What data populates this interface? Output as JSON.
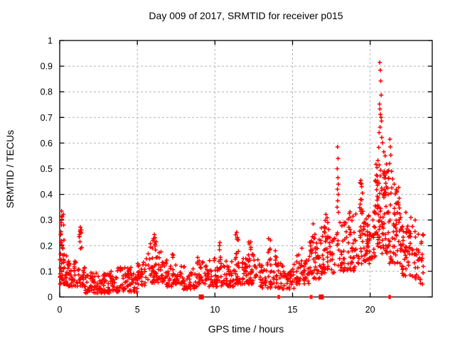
{
  "figure": {
    "title": "Day 009 of 2017, SRMTID for receiver p015"
  },
  "chart_data": {
    "type": "scatter",
    "title": "Day 009 of 2017, SRMTID for receiver p015",
    "xlabel": "GPS time / hours",
    "ylabel": "SRMTID / TECUs",
    "xlim": [
      0,
      24
    ],
    "ylim": [
      0,
      1
    ],
    "xticks": [
      {
        "v": 0,
        "label": "0"
      },
      {
        "v": 5,
        "label": "5"
      },
      {
        "v": 10,
        "label": "10"
      },
      {
        "v": 15,
        "label": "15"
      },
      {
        "v": 20,
        "label": "20"
      }
    ],
    "yticks": [
      {
        "v": 0.0,
        "label": "0"
      },
      {
        "v": 0.1,
        "label": "0.1"
      },
      {
        "v": 0.2,
        "label": "0.2"
      },
      {
        "v": 0.3,
        "label": "0.3"
      },
      {
        "v": 0.4,
        "label": "0.4"
      },
      {
        "v": 0.5,
        "label": "0.5"
      },
      {
        "v": 0.6,
        "label": "0.6"
      },
      {
        "v": 0.7,
        "label": "0.7"
      },
      {
        "v": 0.8,
        "label": "0.8"
      },
      {
        "v": 0.9,
        "label": "0.9"
      },
      {
        "v": 1.0,
        "label": "1"
      }
    ],
    "grid": true,
    "legend": false,
    "marker": "plus",
    "marker_color": "#ff0000",
    "grid_color": "#b4b4b4",
    "frame_color": "#000000",
    "background": "#ffffff",
    "summary": "24 h of 30 s SRMTID values: noisy baseline 0.03-0.15 TECU from 0-16 h with minor enhancements near 0.1 h (0.33), 1.3 h (0.27), 6.1 h (0.24), 11.4 h (0.25); activity rises after 16 h, isolated spike at 17.9 h (0.59), main TID event peaking 0.91 at 20.6 h, decaying to ~0.1 by 23.4 h",
    "peak_points": [
      [
        0.12,
        0.335
      ],
      [
        0.16,
        0.312
      ],
      [
        0.1,
        0.29
      ],
      [
        1.33,
        0.272
      ],
      [
        1.36,
        0.252
      ],
      [
        6.1,
        0.243
      ],
      [
        6.05,
        0.228
      ],
      [
        10.32,
        0.212
      ],
      [
        11.4,
        0.252
      ],
      [
        11.44,
        0.232
      ],
      [
        12.3,
        0.215
      ],
      [
        13.45,
        0.228
      ],
      [
        15.6,
        0.19
      ],
      [
        16.33,
        0.285
      ],
      [
        17.15,
        0.322
      ],
      [
        17.9,
        0.585
      ],
      [
        17.93,
        0.54
      ],
      [
        17.88,
        0.5
      ],
      [
        17.92,
        0.465
      ],
      [
        17.95,
        0.44
      ],
      [
        17.89,
        0.42
      ],
      [
        17.94,
        0.4
      ],
      [
        17.91,
        0.375
      ],
      [
        17.87,
        0.35
      ],
      [
        17.96,
        0.33
      ],
      [
        18.7,
        0.332
      ],
      [
        18.9,
        0.315
      ],
      [
        19.4,
        0.455
      ],
      [
        19.45,
        0.43
      ],
      [
        19.5,
        0.405
      ],
      [
        19.38,
        0.38
      ],
      [
        20.62,
        0.914
      ],
      [
        20.65,
        0.884
      ],
      [
        20.68,
        0.842
      ],
      [
        20.71,
        0.787
      ],
      [
        20.6,
        0.752
      ],
      [
        20.63,
        0.733
      ],
      [
        20.66,
        0.712
      ],
      [
        20.7,
        0.7
      ],
      [
        20.73,
        0.686
      ],
      [
        20.64,
        0.662
      ],
      [
        20.58,
        0.641
      ],
      [
        20.75,
        0.622
      ],
      [
        20.8,
        0.601
      ],
      [
        20.55,
        0.583
      ],
      [
        20.88,
        0.566
      ],
      [
        20.97,
        0.55
      ],
      [
        20.5,
        0.532
      ],
      [
        21.05,
        0.518
      ],
      [
        20.45,
        0.505
      ],
      [
        21.12,
        0.49
      ],
      [
        20.4,
        0.475
      ],
      [
        21.18,
        0.462
      ],
      [
        20.35,
        0.45
      ],
      [
        21.27,
        0.615
      ],
      [
        21.3,
        0.585
      ],
      [
        21.33,
        0.553
      ],
      [
        21.25,
        0.52
      ],
      [
        21.38,
        0.49
      ],
      [
        21.45,
        0.46
      ],
      [
        21.55,
        0.44
      ],
      [
        22.3,
        0.33
      ],
      [
        22.62,
        0.31
      ],
      [
        22.9,
        0.3
      ],
      [
        23.1,
        0.245
      ],
      [
        23.3,
        0.215
      ]
    ],
    "cloud_clusters_format": "[x_start_hour, x_end_hour, n_points, y_min_TECU, y_max_TECU, low_bias_power]",
    "cloud_clusters": [
      [
        0.0,
        0.45,
        40,
        0.05,
        0.17,
        1.6
      ],
      [
        0.05,
        0.28,
        14,
        0.18,
        0.335,
        1.0
      ],
      [
        0.45,
        1.15,
        42,
        0.04,
        0.14,
        1.6
      ],
      [
        1.25,
        1.45,
        10,
        0.17,
        0.275,
        1.0
      ],
      [
        1.15,
        1.65,
        22,
        0.04,
        0.12,
        1.5
      ],
      [
        1.65,
        3.3,
        88,
        0.015,
        0.095,
        1.7
      ],
      [
        3.3,
        5.0,
        88,
        0.02,
        0.115,
        1.6
      ],
      [
        5.0,
        5.65,
        30,
        0.045,
        0.155,
        1.5
      ],
      [
        5.65,
        6.65,
        56,
        0.055,
        0.21,
        1.5
      ],
      [
        5.95,
        6.35,
        8,
        0.17,
        0.245,
        1.0
      ],
      [
        6.65,
        7.25,
        28,
        0.04,
        0.145,
        1.5
      ],
      [
        7.25,
        7.95,
        36,
        0.05,
        0.175,
        1.4
      ],
      [
        7.95,
        8.85,
        40,
        0.03,
        0.12,
        1.6
      ],
      [
        8.85,
        9.6,
        34,
        0.05,
        0.165,
        1.4
      ],
      [
        9.6,
        11.25,
        76,
        0.04,
        0.15,
        1.5
      ],
      [
        10.25,
        10.42,
        6,
        0.13,
        0.215,
        1.0
      ],
      [
        11.32,
        11.52,
        9,
        0.13,
        0.25,
        1.0
      ],
      [
        11.25,
        12.85,
        76,
        0.05,
        0.155,
        1.5
      ],
      [
        12.15,
        12.55,
        8,
        0.14,
        0.215,
        1.0
      ],
      [
        12.85,
        14.35,
        66,
        0.035,
        0.135,
        1.5
      ],
      [
        13.38,
        13.58,
        7,
        0.13,
        0.23,
        1.0
      ],
      [
        13.88,
        14.02,
        5,
        0.12,
        0.185,
        1.0
      ],
      [
        14.35,
        15.1,
        34,
        0.03,
        0.125,
        1.5
      ],
      [
        15.1,
        16.05,
        46,
        0.05,
        0.18,
        1.4
      ],
      [
        16.05,
        16.85,
        46,
        0.07,
        0.225,
        1.3
      ],
      [
        16.25,
        16.45,
        5,
        0.2,
        0.285,
        1.0
      ],
      [
        16.85,
        17.75,
        52,
        0.09,
        0.28,
        1.3
      ],
      [
        17.0,
        17.3,
        4,
        0.27,
        0.325,
        1.0
      ],
      [
        17.85,
        18.05,
        8,
        0.12,
        0.3,
        1.0
      ],
      [
        18.05,
        19.05,
        56,
        0.1,
        0.29,
        1.4
      ],
      [
        18.5,
        18.95,
        4,
        0.29,
        0.335,
        1.0
      ],
      [
        19.05,
        19.65,
        34,
        0.13,
        0.36,
        1.3
      ],
      [
        19.35,
        19.55,
        5,
        0.36,
        0.46,
        1.0
      ],
      [
        19.65,
        20.3,
        46,
        0.13,
        0.34,
        1.3
      ],
      [
        20.3,
        21.2,
        96,
        0.16,
        0.52,
        1.2
      ],
      [
        21.2,
        22.0,
        62,
        0.13,
        0.43,
        1.3
      ],
      [
        22.0,
        22.9,
        56,
        0.08,
        0.28,
        1.3
      ],
      [
        22.9,
        23.45,
        28,
        0.05,
        0.25,
        1.2
      ]
    ],
    "zero_markers": {
      "squares_x": [
        9.12,
        16.85
      ],
      "plus_x": [
        14.07,
        14.16,
        16.15,
        16.24,
        21.22,
        21.3
      ]
    },
    "seed": 20170109
  }
}
